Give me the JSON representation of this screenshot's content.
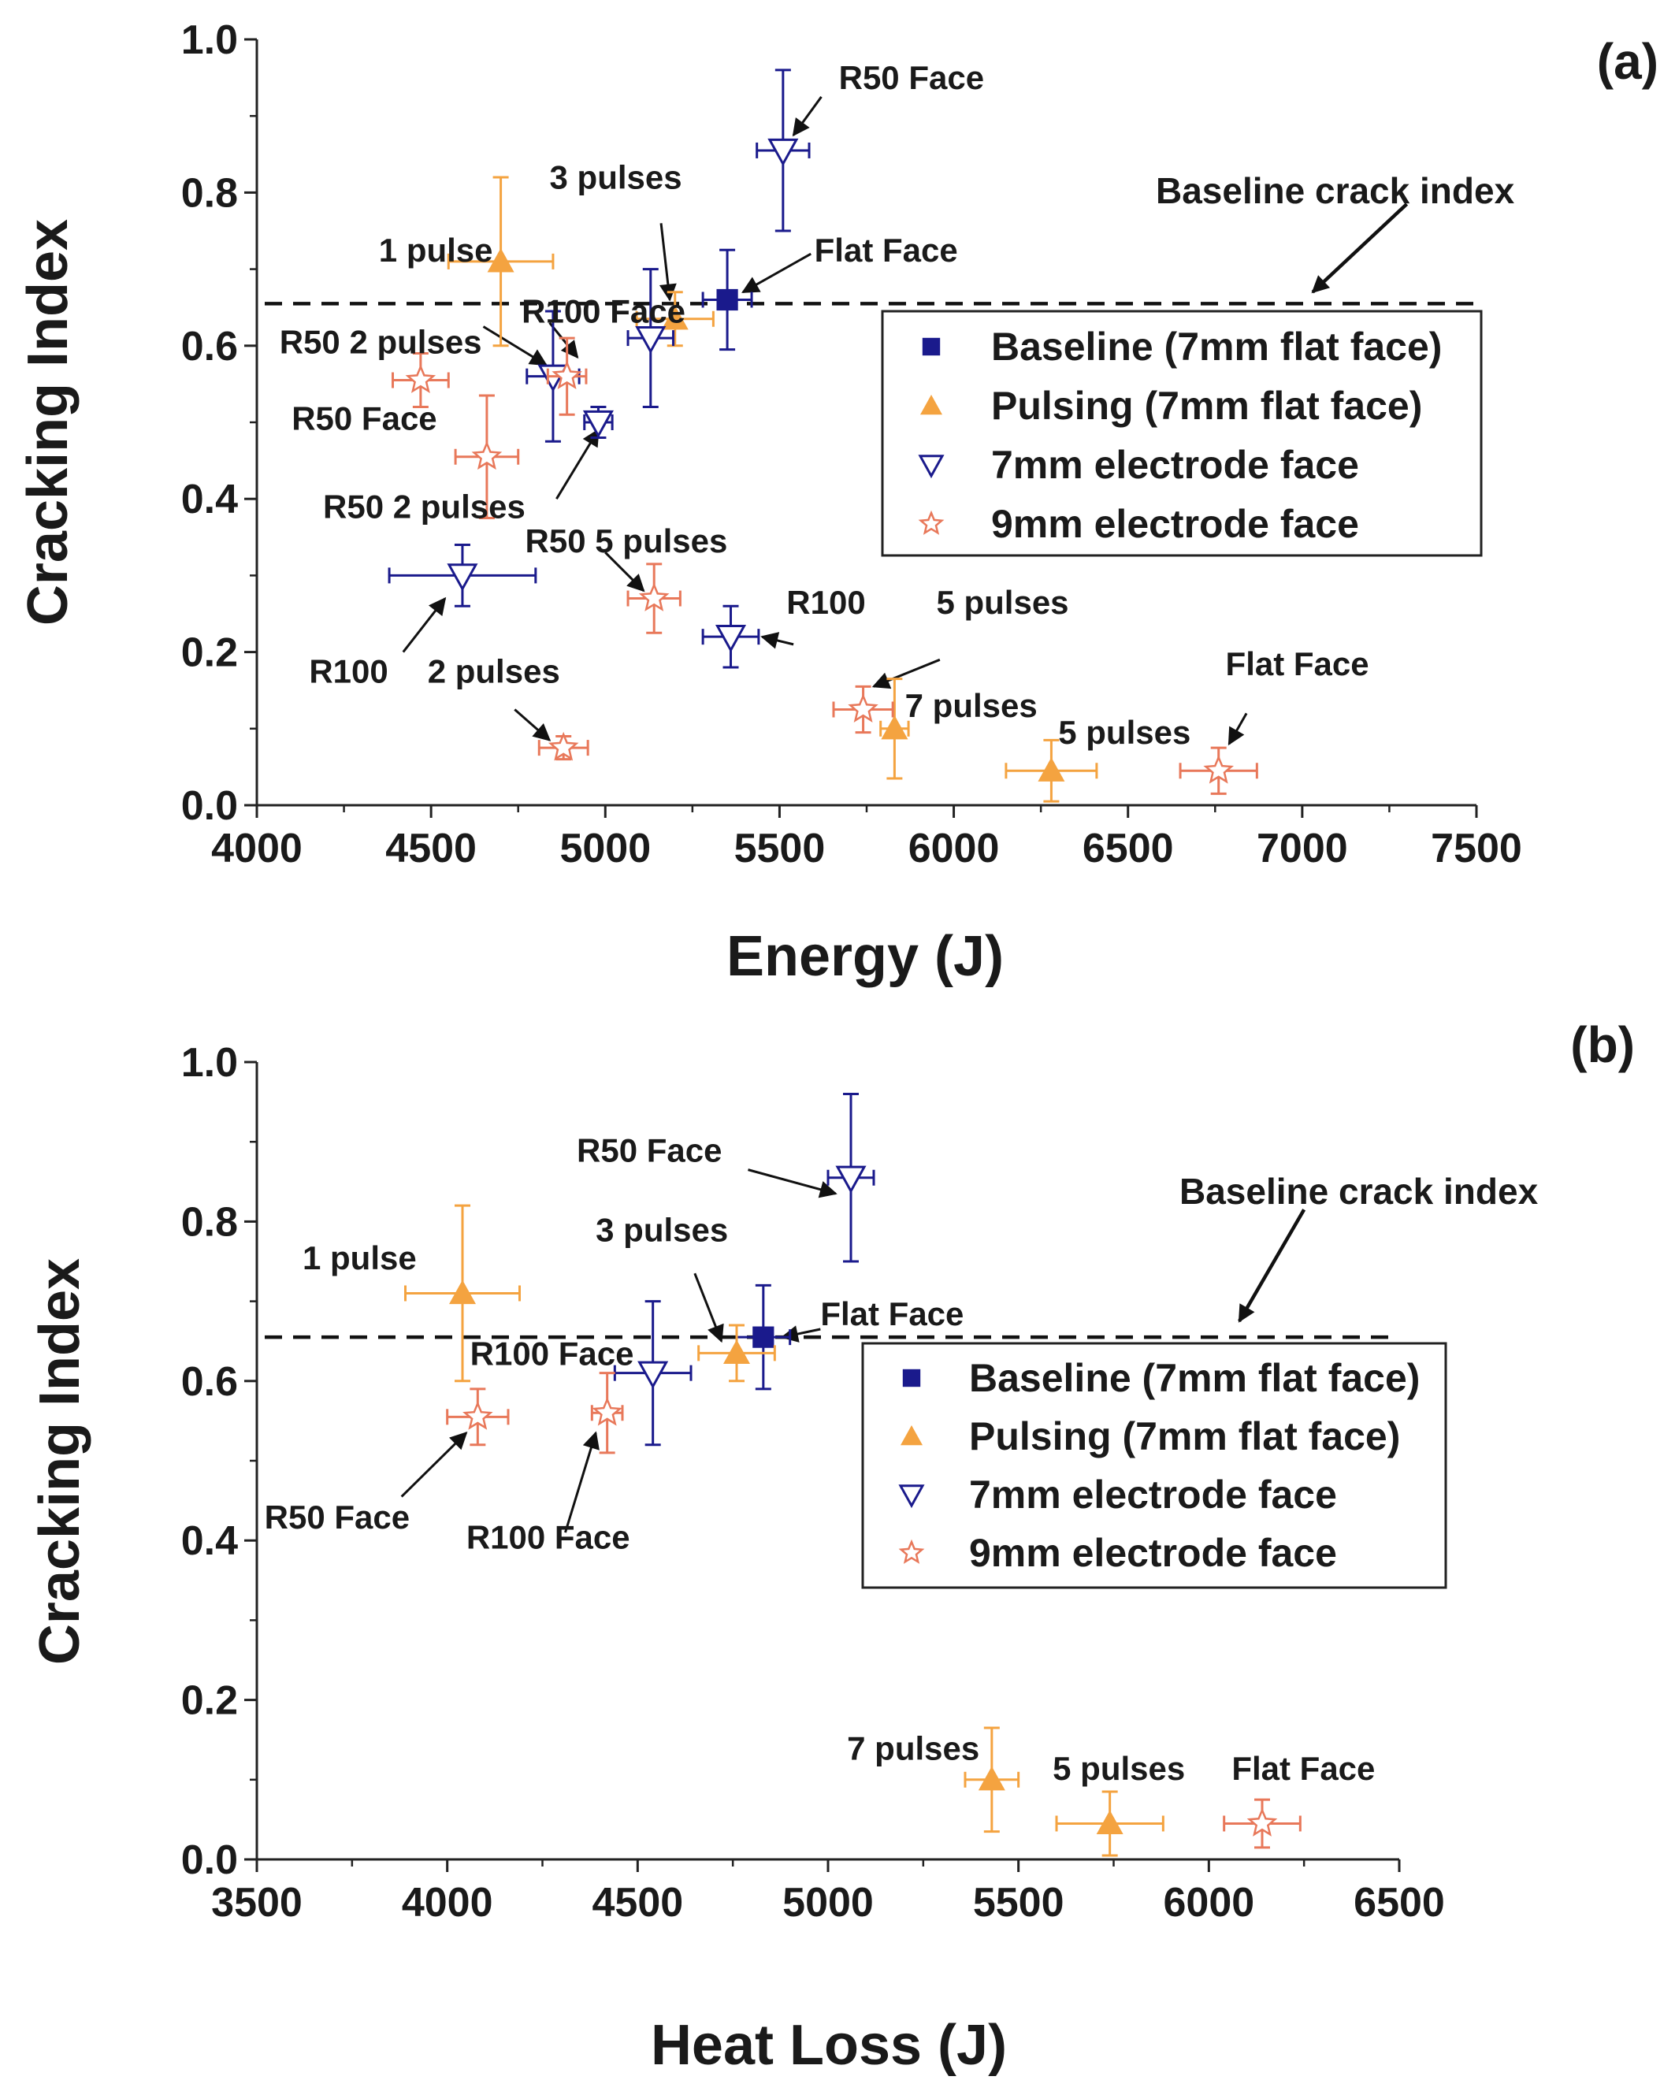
{
  "chart_data": [
    {
      "type": "scatter",
      "panel_label": "(a)",
      "xlabel": "Energy (J)",
      "ylabel": "Cracking Index",
      "xlim": [
        4000,
        7500
      ],
      "ylim": [
        0,
        1.0
      ],
      "xticks": [
        "4000",
        "4500",
        "5000",
        "5500",
        "6000",
        "6500",
        "7000",
        "7500"
      ],
      "yticks": [
        "0.0",
        "0.2",
        "0.4",
        "0.6",
        "0.8",
        "1.0"
      ],
      "baseline": {
        "value": 0.655,
        "label": "Baseline crack index"
      },
      "legend_position": "right",
      "series": [
        {
          "name": "Baseline (7mm flat face)",
          "marker": "square",
          "color": "#1a1a8c",
          "points": [
            {
              "x": 5350,
              "y": 0.66,
              "xerr": 70,
              "yerr": 0.065
            }
          ]
        },
        {
          "name": "Pulsing (7mm flat face)",
          "marker": "triangle-up",
          "color": "#f4a340",
          "points": [
            {
              "x": 4700,
              "y": 0.71,
              "xerr": 150,
              "yerr": 0.11
            },
            {
              "x": 5200,
              "y": 0.635,
              "xerr": 110,
              "yerr": 0.035
            },
            {
              "x": 5830,
              "y": 0.1,
              "xerr": 40,
              "yerr": 0.065
            },
            {
              "x": 6280,
              "y": 0.045,
              "xerr": 130,
              "yerr": 0.04
            }
          ]
        },
        {
          "name": "7mm electrode face",
          "marker": "triangle-down-open",
          "color": "#1a1a8c",
          "points": [
            {
              "x": 5510,
              "y": 0.855,
              "xerr": 75,
              "yerr": 0.105
            },
            {
              "x": 4850,
              "y": 0.56,
              "xerr": 75,
              "yerr": 0.085
            },
            {
              "x": 5130,
              "y": 0.61,
              "xerr": 65,
              "yerr": 0.09
            },
            {
              "x": 4980,
              "y": 0.5,
              "xerr": 40,
              "yerr": 0.02
            },
            {
              "x": 4590,
              "y": 0.3,
              "xerr": 210,
              "yerr": 0.04
            },
            {
              "x": 5360,
              "y": 0.22,
              "xerr": 80,
              "yerr": 0.04
            }
          ]
        },
        {
          "name": "9mm electrode face",
          "marker": "star-open",
          "color": "#e8785a",
          "points": [
            {
              "x": 4470,
              "y": 0.555,
              "xerr": 80,
              "yerr": 0.035
            },
            {
              "x": 4890,
              "y": 0.56,
              "xerr": 55,
              "yerr": 0.05
            },
            {
              "x": 4660,
              "y": 0.455,
              "xerr": 90,
              "yerr": 0.08
            },
            {
              "x": 5140,
              "y": 0.27,
              "xerr": 75,
              "yerr": 0.045
            },
            {
              "x": 4880,
              "y": 0.075,
              "xerr": 70,
              "yerr": 0.015
            },
            {
              "x": 5740,
              "y": 0.125,
              "xerr": 85,
              "yerr": 0.03
            },
            {
              "x": 6760,
              "y": 0.045,
              "xerr": 110,
              "yerr": 0.03
            }
          ]
        }
      ],
      "annotations": [
        {
          "text": "R50 Face",
          "x": 5670,
          "y": 0.935
        },
        {
          "text": "3 pulses",
          "x": 4840,
          "y": 0.805
        },
        {
          "text": "1 pulse",
          "x": 4350,
          "y": 0.71
        },
        {
          "text": "Flat Face",
          "x": 5600,
          "y": 0.71
        },
        {
          "text": "R100 Face",
          "x": 4760,
          "y": 0.63
        },
        {
          "text": "R50 2 pulses",
          "x": 4065,
          "y": 0.59
        },
        {
          "text": "R50 Face",
          "x": 4100,
          "y": 0.49
        },
        {
          "text": "R50 2 pulses",
          "x": 4190,
          "y": 0.375
        },
        {
          "text": "R50 5 pulses",
          "x": 4770,
          "y": 0.33
        },
        {
          "text": "R100",
          "x": 5520,
          "y": 0.25
        },
        {
          "text": "5 pulses",
          "x": 5950,
          "y": 0.25
        },
        {
          "text": "R100",
          "x": 4150,
          "y": 0.16
        },
        {
          "text": "2 pulses",
          "x": 4490,
          "y": 0.16
        },
        {
          "text": "7 pulses",
          "x": 5860,
          "y": 0.115
        },
        {
          "text": "5 pulses",
          "x": 6300,
          "y": 0.08
        },
        {
          "text": "Flat Face",
          "x": 6780,
          "y": 0.17
        }
      ],
      "arrows": [
        {
          "from": [
            5620,
            0.925
          ],
          "to": [
            5540,
            0.875
          ]
        },
        {
          "from": [
            5160,
            0.76
          ],
          "to": [
            5185,
            0.66
          ]
        },
        {
          "from": [
            5590,
            0.72
          ],
          "to": [
            5395,
            0.67
          ]
        },
        {
          "from": [
            4840,
            0.63
          ],
          "to": [
            4920,
            0.585
          ]
        },
        {
          "from": [
            4650,
            0.625
          ],
          "to": [
            4830,
            0.575
          ]
        },
        {
          "from": [
            4860,
            0.4
          ],
          "to": [
            4980,
            0.49
          ]
        },
        {
          "from": [
            5000,
            0.33
          ],
          "to": [
            5110,
            0.28
          ]
        },
        {
          "from": [
            4420,
            0.2
          ],
          "to": [
            4540,
            0.27
          ]
        },
        {
          "from": [
            5540,
            0.21
          ],
          "to": [
            5450,
            0.22
          ]
        },
        {
          "from": [
            5960,
            0.19
          ],
          "to": [
            5770,
            0.155
          ]
        },
        {
          "from": [
            4740,
            0.125
          ],
          "to": [
            4840,
            0.085
          ]
        },
        {
          "from": [
            6840,
            0.12
          ],
          "to": [
            6790,
            0.08
          ]
        },
        {
          "from": [
            7300,
            0.785
          ],
          "to": [
            7030,
            0.67
          ]
        }
      ]
    },
    {
      "type": "scatter",
      "panel_label": "(b)",
      "xlabel": "Heat Loss (J)",
      "ylabel": "Cracking Index",
      "xlim": [
        3500,
        6500
      ],
      "ylim": [
        0,
        1.0
      ],
      "xticks": [
        "3500",
        "4000",
        "4500",
        "5000",
        "5500",
        "6000",
        "6500"
      ],
      "yticks": [
        "0.0",
        "0.2",
        "0.4",
        "0.6",
        "0.8",
        "1.0"
      ],
      "baseline": {
        "value": 0.655,
        "label": "Baseline crack index"
      },
      "legend_position": "right",
      "series": [
        {
          "name": "Baseline (7mm flat face)",
          "marker": "square",
          "color": "#1a1a8c",
          "points": [
            {
              "x": 4830,
              "y": 0.655,
              "xerr": 70,
              "yerr": 0.065
            }
          ]
        },
        {
          "name": "Pulsing (7mm flat face)",
          "marker": "triangle-up",
          "color": "#f4a340",
          "points": [
            {
              "x": 4040,
              "y": 0.71,
              "xerr": 150,
              "yerr": 0.11
            },
            {
              "x": 4760,
              "y": 0.635,
              "xerr": 100,
              "yerr": 0.035
            },
            {
              "x": 5430,
              "y": 0.1,
              "xerr": 70,
              "yerr": 0.065
            },
            {
              "x": 5740,
              "y": 0.045,
              "xerr": 140,
              "yerr": 0.04
            }
          ]
        },
        {
          "name": "7mm electrode face",
          "marker": "triangle-down-open",
          "color": "#1a1a8c",
          "points": [
            {
              "x": 5060,
              "y": 0.855,
              "xerr": 60,
              "yerr": 0.105
            },
            {
              "x": 4540,
              "y": 0.61,
              "xerr": 100,
              "yerr": 0.09
            }
          ]
        },
        {
          "name": "9mm electrode face",
          "marker": "star-open",
          "color": "#e8785a",
          "points": [
            {
              "x": 4080,
              "y": 0.555,
              "xerr": 80,
              "yerr": 0.035
            },
            {
              "x": 4420,
              "y": 0.56,
              "xerr": 40,
              "yerr": 0.05
            },
            {
              "x": 6140,
              "y": 0.045,
              "xerr": 100,
              "yerr": 0.03
            }
          ]
        }
      ],
      "annotations": [
        {
          "text": "R50 Face",
          "x": 4340,
          "y": 0.875
        },
        {
          "text": "1 pulse",
          "x": 3620,
          "y": 0.74
        },
        {
          "text": "3 pulses",
          "x": 4390,
          "y": 0.775
        },
        {
          "text": "Flat Face",
          "x": 4980,
          "y": 0.67
        },
        {
          "text": "R100 Face",
          "x": 4060,
          "y": 0.62
        },
        {
          "text": "R50 Face",
          "x": 3520,
          "y": 0.415
        },
        {
          "text": "R100 Face",
          "x": 4050,
          "y": 0.39
        },
        {
          "text": "7 pulses",
          "x": 5050,
          "y": 0.125
        },
        {
          "text": "5 pulses",
          "x": 5590,
          "y": 0.1
        },
        {
          "text": "Flat Face",
          "x": 6060,
          "y": 0.1
        }
      ],
      "arrows": [
        {
          "from": [
            4790,
            0.865
          ],
          "to": [
            5020,
            0.835
          ]
        },
        {
          "from": [
            4650,
            0.735
          ],
          "to": [
            4720,
            0.65
          ]
        },
        {
          "from": [
            4980,
            0.665
          ],
          "to": [
            4880,
            0.655
          ]
        },
        {
          "from": [
            3880,
            0.455
          ],
          "to": [
            4050,
            0.535
          ]
        },
        {
          "from": [
            4310,
            0.41
          ],
          "to": [
            4390,
            0.535
          ]
        },
        {
          "from": [
            6250,
            0.815
          ],
          "to": [
            6080,
            0.675
          ]
        }
      ]
    }
  ]
}
